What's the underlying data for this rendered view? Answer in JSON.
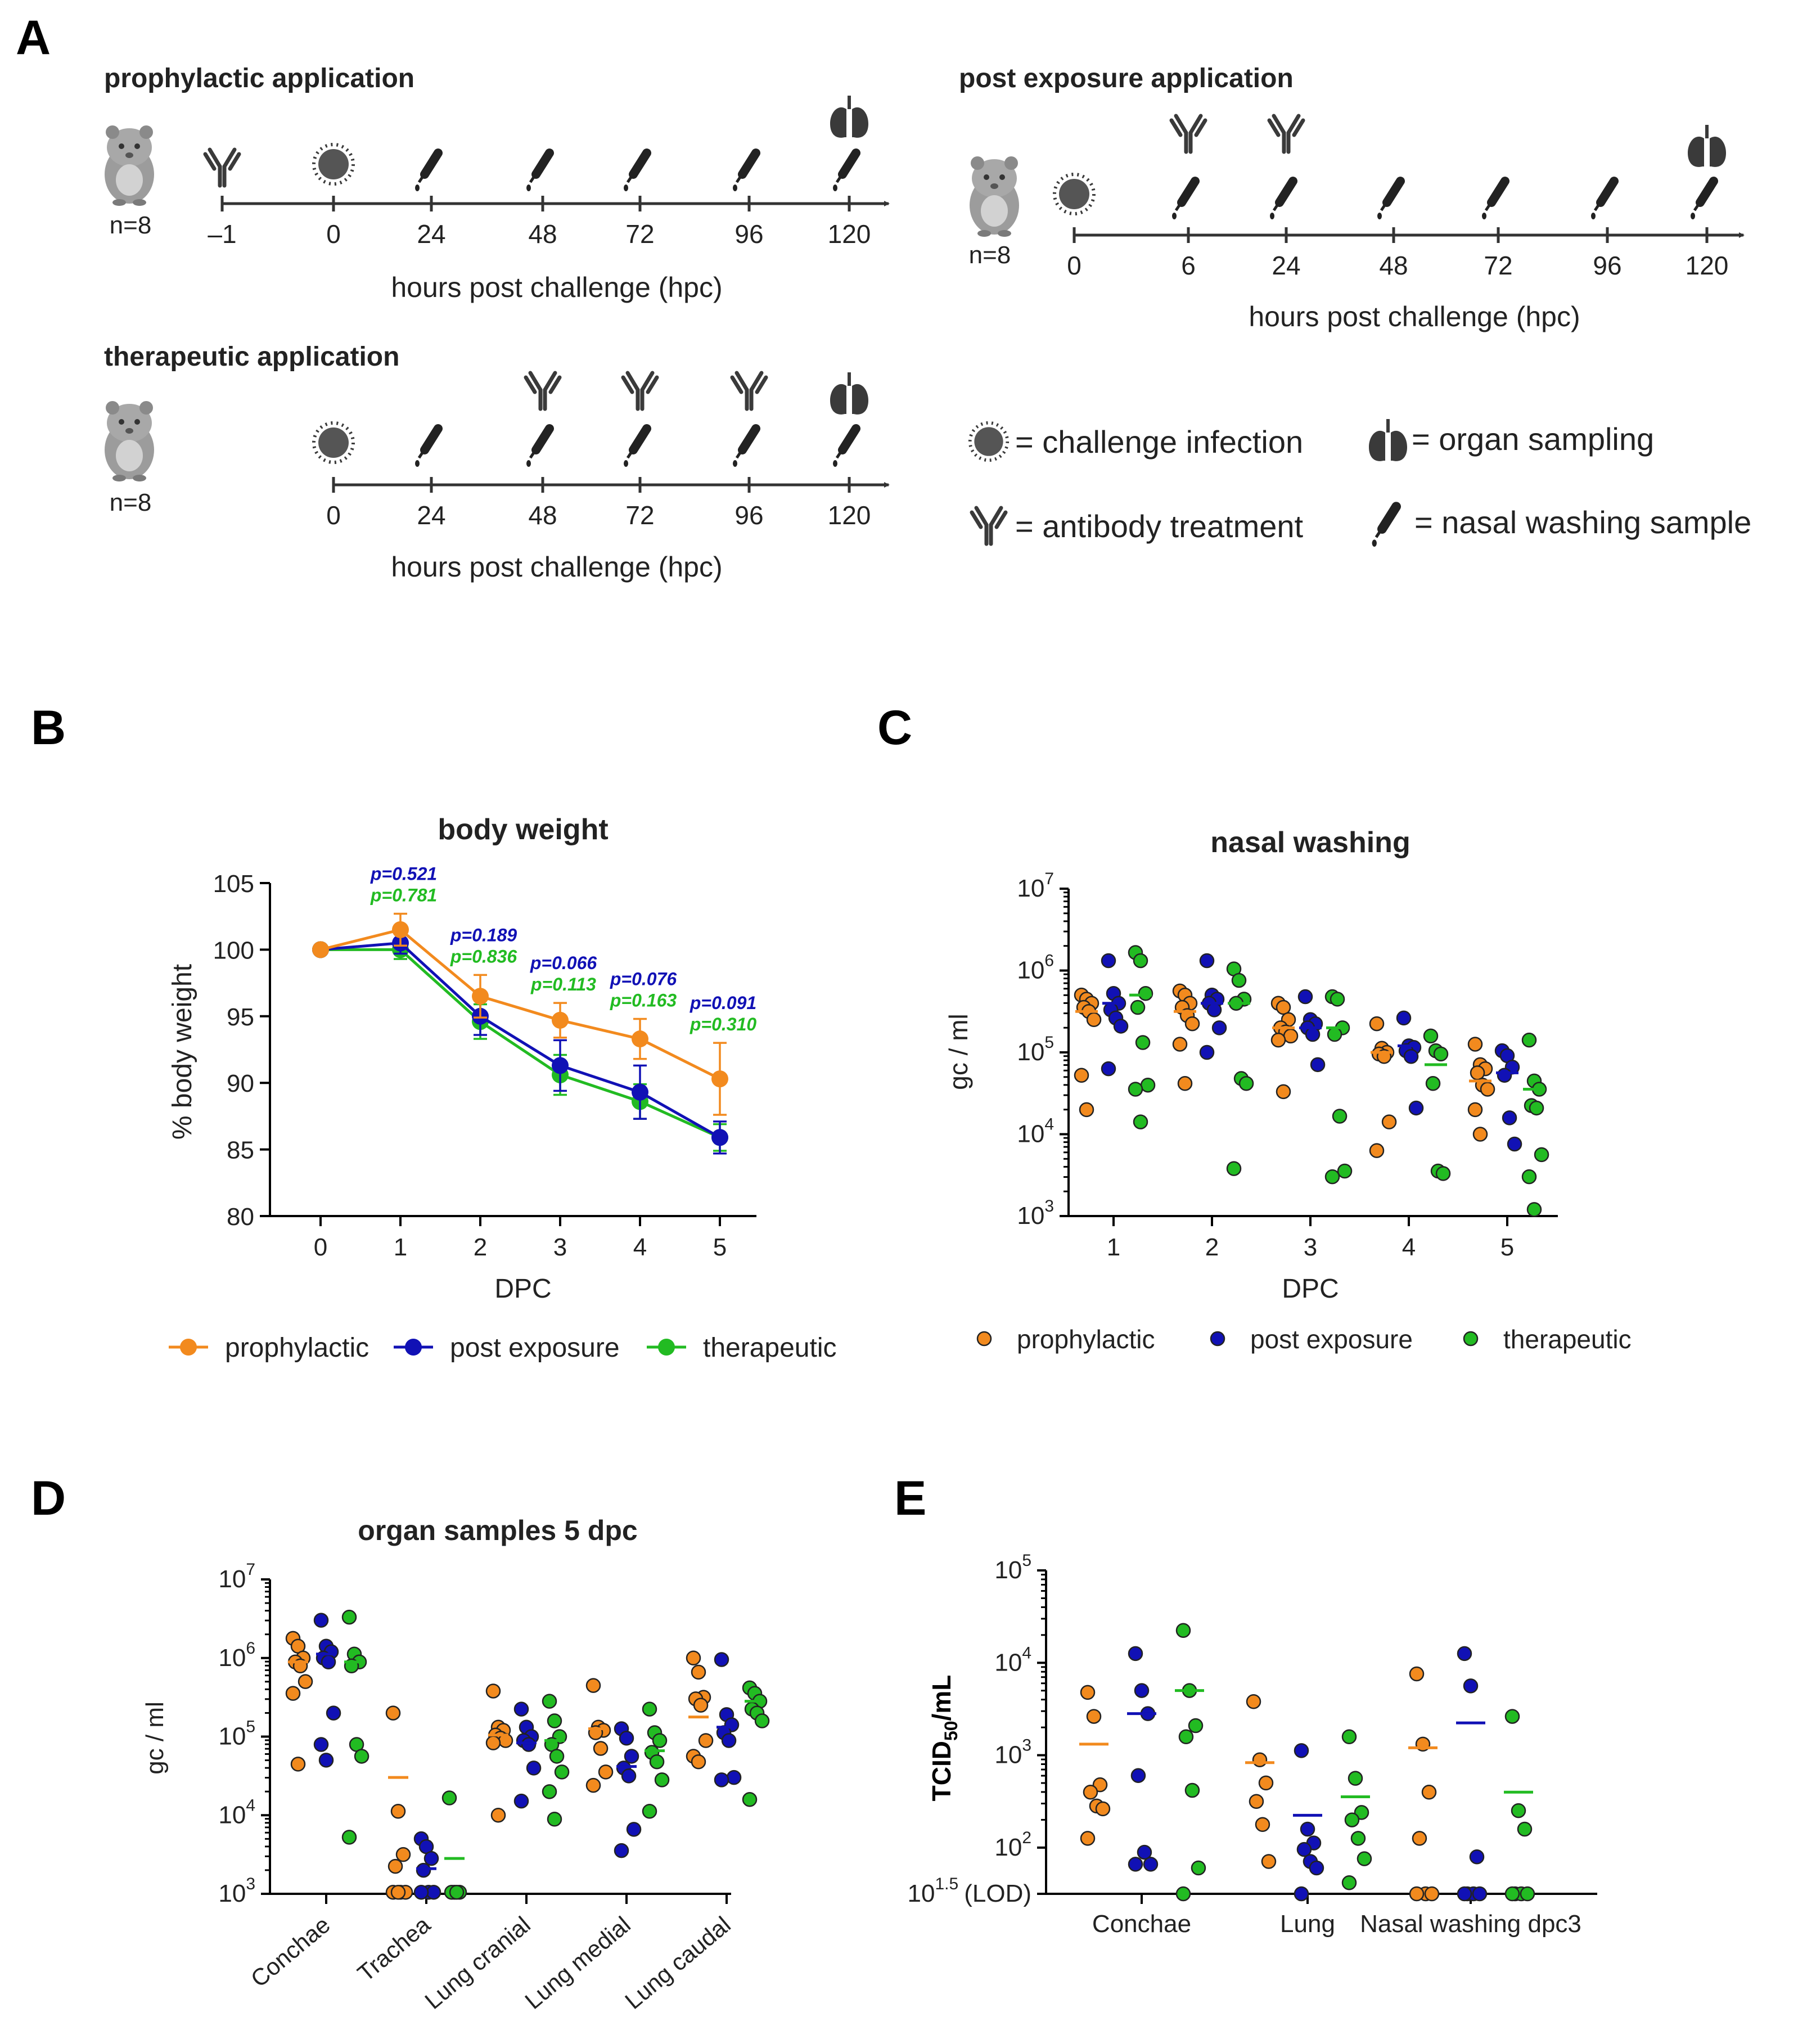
{
  "panel_letters": {
    "A": "A",
    "B": "B",
    "C": "C",
    "D": "D",
    "E": "E"
  },
  "colors": {
    "prophylactic": "#F28A1E",
    "post_exposure": "#1111B5",
    "therapeutic": "#22BB22",
    "axis": "#000000",
    "icon": "#3a3a3a"
  },
  "schematic": {
    "prophylactic": {
      "title": "prophylactic application",
      "n": "n=8",
      "ticks": [
        "–1",
        "0",
        "24",
        "48",
        "72",
        "96",
        "120"
      ],
      "axis_label": "hours post challenge (hpc)"
    },
    "therapeutic": {
      "title": "therapeutic application",
      "n": "n=8",
      "ticks": [
        "0",
        "24",
        "48",
        "72",
        "96",
        "120"
      ],
      "axis_label": "hours post challenge (hpc)"
    },
    "post_exposure": {
      "title": "post exposure application",
      "n": "n=8",
      "ticks": [
        "0",
        "6",
        "24",
        "48",
        "72",
        "96",
        "120"
      ],
      "axis_label": "hours post challenge (hpc)"
    },
    "legend": {
      "challenge": "= challenge infection",
      "organ": "= organ sampling",
      "antibody": "= antibody treatment",
      "nasal": "= nasal washing sample"
    }
  },
  "legend_series": {
    "prophylactic": "prophylactic",
    "post_exposure": "post exposure",
    "therapeutic": "therapeutic"
  },
  "chart_data": [
    {
      "id": "B",
      "type": "line",
      "title": "body weight",
      "xlabel": "DPC",
      "ylabel": "% body weight",
      "x": [
        0,
        1,
        2,
        3,
        4,
        5
      ],
      "xticks": [
        "0",
        "1",
        "2",
        "3",
        "4",
        "5"
      ],
      "ylim": [
        80,
        105
      ],
      "yticks": [
        "80",
        "85",
        "90",
        "95",
        "100",
        "105"
      ],
      "series": [
        {
          "name": "prophylactic",
          "values": [
            100,
            101.5,
            96.5,
            94.7,
            93.3,
            90.3
          ],
          "sd": [
            0,
            1.2,
            1.6,
            1.3,
            1.5,
            2.7
          ]
        },
        {
          "name": "post exposure",
          "values": [
            100,
            100.5,
            95,
            91.3,
            89.3,
            85.9
          ],
          "sd": [
            0,
            0.8,
            1.4,
            1.9,
            2.0,
            1.2
          ]
        },
        {
          "name": "therapeutic",
          "values": [
            100,
            100,
            94.6,
            90.6,
            88.6,
            85.9
          ],
          "sd": [
            0,
            0.7,
            1.3,
            1.5,
            1.3,
            1.0
          ]
        }
      ],
      "pvalues": [
        {
          "x": 1,
          "post_exposure": "p=0.521",
          "therapeutic": "p=0.781"
        },
        {
          "x": 2,
          "post_exposure": "p=0.189",
          "therapeutic": "p=0.836"
        },
        {
          "x": 3,
          "post_exposure": "p=0.066",
          "therapeutic": "p=0.113"
        },
        {
          "x": 4,
          "post_exposure": "p=0.076",
          "therapeutic": "p=0.163"
        },
        {
          "x": 5,
          "post_exposure": "p=0.091",
          "therapeutic": "p=0.310"
        }
      ]
    },
    {
      "id": "C",
      "type": "scatter",
      "title": "nasal washing",
      "xlabel": "DPC",
      "ylabel": "gc / ml",
      "yscale": "log",
      "ylim_log10": [
        3,
        7
      ],
      "categories": [
        "1",
        "2",
        "3",
        "4",
        "5"
      ],
      "series": [
        {
          "name": "prophylactic",
          "medians": [
            5.5,
            5.5,
            5.3,
            5.0,
            4.65
          ],
          "values": [
            [
              5.7,
              5.65,
              5.6,
              5.55,
              5.5,
              5.4,
              4.72,
              4.3
            ],
            [
              5.75,
              5.7,
              5.6,
              5.55,
              5.45,
              5.35,
              5.1,
              4.62
            ],
            [
              5.6,
              5.55,
              5.4,
              5.3,
              5.25,
              5.2,
              5.15,
              4.52
            ],
            [
              5.35,
              5.05,
              5.0,
              4.98,
              4.95,
              4.15,
              3.8
            ],
            [
              5.1,
              4.85,
              4.8,
              4.75,
              4.6,
              4.55,
              4.3,
              4.0
            ]
          ]
        },
        {
          "name": "post exposure",
          "medians": [
            5.6,
            5.6,
            5.3,
            5.08,
            4.75
          ],
          "values": [
            [
              6.12,
              5.72,
              5.6,
              5.52,
              5.42,
              5.32,
              4.8
            ],
            [
              6.12,
              5.7,
              5.65,
              5.6,
              5.52,
              5.3,
              5.0
            ],
            [
              5.68,
              5.4,
              5.35,
              5.3,
              5.22,
              4.85
            ],
            [
              5.42,
              5.08,
              5.06,
              5.02,
              4.95,
              4.32
            ],
            [
              5.02,
              4.96,
              4.82,
              4.72,
              4.2,
              3.88
            ]
          ]
        },
        {
          "name": "therapeutic",
          "medians": [
            5.7,
            5.6,
            5.3,
            4.85,
            4.55
          ],
          "values": [
            [
              6.22,
              6.12,
              5.72,
              5.55,
              5.12,
              4.6,
              4.55,
              4.15
            ],
            [
              6.02,
              5.88,
              5.65,
              5.6,
              4.68,
              4.62,
              3.58
            ],
            [
              5.68,
              5.65,
              5.3,
              5.22,
              4.22,
              3.55,
              3.48
            ],
            [
              5.2,
              5.02,
              4.98,
              4.62,
              3.55,
              3.52
            ],
            [
              5.15,
              4.65,
              4.55,
              4.35,
              4.32,
              3.75,
              3.48,
              3.08
            ]
          ]
        }
      ]
    },
    {
      "id": "D",
      "type": "scatter",
      "title": "organ samples 5 dpc",
      "ylabel": "gc / ml",
      "yscale": "log",
      "ylim_log10": [
        3,
        7
      ],
      "categories": [
        "Conchae",
        "Trachea",
        "Lung cranial",
        "Lung medial",
        "Lung caudal"
      ],
      "series": [
        {
          "name": "prophylactic",
          "medians": [
            5.95,
            4.48,
            5.02,
            5.1,
            5.25
          ],
          "values": [
            [
              6.25,
              6.15,
              6.0,
              5.95,
              5.9,
              5.7,
              5.55,
              4.65
            ],
            [
              5.3,
              4.05,
              3.5,
              3.35,
              3.02,
              3.02,
              3.02,
              3.02
            ],
            [
              5.58,
              5.12,
              5.08,
              5.02,
              4.98,
              4.95,
              4.92,
              4.0
            ],
            [
              5.65,
              5.12,
              5.08,
              5.05,
              4.85,
              4.55,
              4.38
            ],
            [
              6.0,
              5.82,
              5.5,
              5.48,
              5.4,
              4.95,
              4.75,
              4.68
            ]
          ]
        },
        {
          "name": "post exposure",
          "medians": [
            6.05,
            3.32,
            4.92,
            4.62,
            5.12
          ],
          "values": [
            [
              6.48,
              6.15,
              6.08,
              6.0,
              5.95,
              5.3,
              4.9,
              4.7
            ],
            [
              3.7,
              3.6,
              3.45,
              3.3,
              3.02,
              3.02,
              3.02
            ],
            [
              5.35,
              5.12,
              5.0,
              4.95,
              4.9,
              4.6,
              4.18
            ],
            [
              5.1,
              4.98,
              4.75,
              4.6,
              4.5,
              3.82,
              3.55
            ],
            [
              5.98,
              5.28,
              5.15,
              5.05,
              4.95,
              4.48,
              4.45
            ]
          ]
        },
        {
          "name": "therapeutic",
          "medians": [
            5.95,
            3.45,
            4.95,
            4.82,
            5.45
          ],
          "values": [
            [
              6.52,
              6.05,
              5.95,
              5.9,
              4.9,
              4.75,
              3.72
            ],
            [
              4.22,
              3.02,
              3.02,
              3.02,
              3.02
            ],
            [
              5.45,
              5.2,
              5.0,
              4.9,
              4.75,
              4.55,
              4.3,
              3.95
            ],
            [
              5.35,
              5.05,
              4.95,
              4.8,
              4.68,
              4.45,
              4.05
            ],
            [
              5.62,
              5.55,
              5.45,
              5.35,
              5.3,
              5.2,
              4.2
            ]
          ]
        }
      ]
    },
    {
      "id": "E",
      "type": "scatter",
      "ylabel": "TCID50/mL",
      "ylabel_main": "TCID",
      "ylabel_sub": "50",
      "ylabel_end": "/mL",
      "yscale": "log",
      "ylim_log10": [
        1.5,
        5
      ],
      "lod_label": "(LOD)",
      "categories": [
        "Conchae",
        "Lung",
        "Nasal washing dpc3"
      ],
      "series": [
        {
          "name": "prophylactic",
          "medians": [
            3.12,
            2.92,
            3.08
          ],
          "values": [
            [
              3.68,
              3.42,
              2.68,
              2.6,
              2.45,
              2.42,
              2.1
            ],
            [
              3.58,
              2.95,
              2.7,
              2.5,
              2.25,
              1.85
            ],
            [
              3.88,
              3.12,
              2.6,
              2.1,
              1.5,
              1.5,
              1.5
            ]
          ]
        },
        {
          "name": "post exposure",
          "medians": [
            3.45,
            2.35,
            3.35
          ],
          "values": [
            [
              4.1,
              3.7,
              3.45,
              2.78,
              1.95,
              1.82,
              1.82
            ],
            [
              3.05,
              2.2,
              2.05,
              1.98,
              1.85,
              1.78,
              1.5
            ],
            [
              4.1,
              3.75,
              1.9,
              1.5,
              1.5,
              1.5,
              1.5
            ]
          ]
        },
        {
          "name": "therapeutic",
          "medians": [
            3.7,
            2.55,
            2.6
          ],
          "values": [
            [
              4.35,
              3.7,
              3.32,
              3.2,
              2.62,
              1.78,
              1.5
            ],
            [
              3.2,
              2.75,
              2.38,
              2.3,
              2.1,
              1.88,
              1.62
            ],
            [
              3.42,
              2.4,
              2.2,
              1.5,
              1.5,
              1.5,
              1.5
            ]
          ]
        }
      ]
    }
  ]
}
